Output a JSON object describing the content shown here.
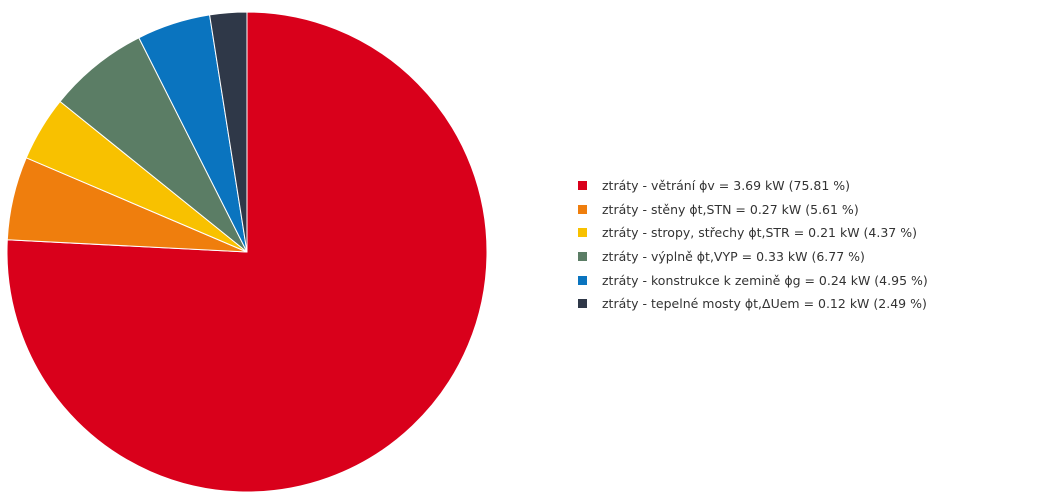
{
  "colors": {
    "background": "#ffffff",
    "slice_border": "#ffffff"
  },
  "chart_data": {
    "type": "pie",
    "title": "",
    "start_angle_deg": 0,
    "direction": "clockwise",
    "series": [
      {
        "label": "ztráty - větrání ϕv = 3.69 kW (75.81 %)",
        "value": 3.69,
        "percent": 75.81,
        "color": "#d9001b"
      },
      {
        "label": "ztráty - stěny ϕt,STN = 0.27 kW (5.61 %)",
        "value": 0.27,
        "percent": 5.61,
        "color": "#ef7e0d"
      },
      {
        "label": "ztráty - stropy, střechy ϕt,STR = 0.21 kW (4.37 %)",
        "value": 0.21,
        "percent": 4.37,
        "color": "#f8c100"
      },
      {
        "label": "ztráty - výplně ϕt,VYP = 0.33 kW (6.77 %)",
        "value": 0.33,
        "percent": 6.77,
        "color": "#5b7d65"
      },
      {
        "label": "ztráty - konstrukce k zemině ϕg = 0.24 kW (4.95 %)",
        "value": 0.24,
        "percent": 4.95,
        "color": "#0a74bf"
      },
      {
        "label": "ztráty - tepelné mosty ϕt,ΔUem = 0.12 kW (2.49 %)",
        "value": 0.12,
        "percent": 2.49,
        "color": "#2f3848"
      }
    ],
    "legend": {
      "position": "right"
    }
  }
}
